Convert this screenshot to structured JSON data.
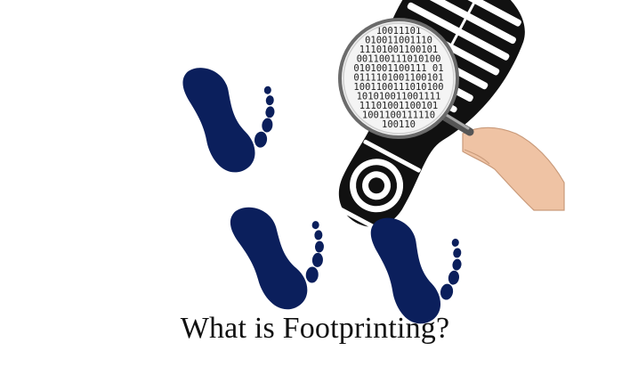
{
  "title": "What is Footprinting?",
  "lens_binary": [
    "10011101",
    "010011001110",
    "11101001100101",
    "001100111010100",
    "0101001100111 01",
    "0111101001100101",
    "1001100111010100",
    "101010011001111",
    "11101001100101",
    "1001100111110",
    "100110"
  ],
  "icons": {
    "footprint": "footprint-icon",
    "shoe": "shoe-sole-icon",
    "magnifier": "magnifying-glass-icon",
    "hand": "hand-icon"
  },
  "colors": {
    "footprint": "#0b1f5c",
    "shoe": "#111111",
    "skin": "#efc3a4",
    "background": "#ffffff"
  }
}
